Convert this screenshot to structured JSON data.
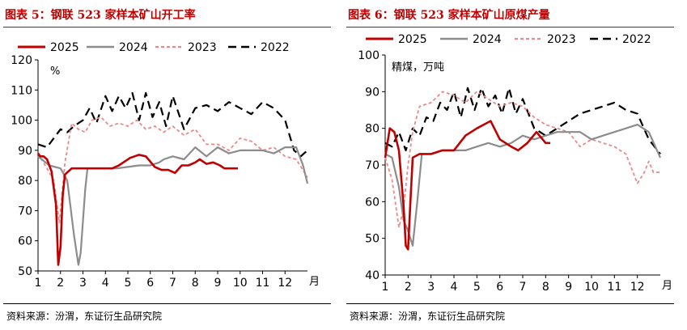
{
  "colors": {
    "s2025": "#c00000",
    "s2024": "#8c8c8c",
    "s2023": "#e98a8a",
    "s2022": "#000000",
    "title": "#c00000"
  },
  "chart_data": [
    {
      "type": "line",
      "title": "图表 5：钢联 523 家样本矿山开工率",
      "source": "资料来源：汾渭，东证衍生品研究院",
      "ylabel": "%",
      "xlabel": "",
      "x_unit": "月",
      "ylim": [
        50,
        120
      ],
      "yticks": [
        50,
        60,
        70,
        80,
        90,
        100,
        110,
        120
      ],
      "xlim": [
        1,
        13
      ],
      "xticks": [
        "1",
        "2",
        "3",
        "4",
        "5",
        "6",
        "7",
        "8",
        "9",
        "10",
        "11",
        "12"
      ],
      "legend": [
        "2025",
        "2024",
        "2023",
        "2022"
      ],
      "series": [
        {
          "name": "2025",
          "key": "s2025",
          "style": "solid-thick",
          "x": [
            1.0,
            1.1,
            1.25,
            1.4,
            1.6,
            1.8,
            1.9,
            2.0,
            2.1,
            2.2,
            2.5,
            3.0,
            3.5,
            4.0,
            4.3,
            4.6,
            4.9,
            5.1,
            5.3,
            5.5,
            5.8,
            6.2,
            6.5,
            6.8,
            7.1,
            7.4,
            7.7,
            8.0,
            8.2,
            8.5,
            8.8,
            9.1,
            9.3,
            9.5,
            9.9
          ],
          "values": [
            89,
            88,
            88,
            87,
            83,
            72,
            52,
            58,
            75,
            82,
            84,
            84,
            84,
            84,
            84,
            85,
            86.5,
            87.5,
            88,
            88.5,
            88,
            84.5,
            83.5,
            83.5,
            82.5,
            85,
            85,
            86,
            87,
            85.5,
            86,
            85,
            84,
            84,
            84
          ]
        },
        {
          "name": "2024",
          "key": "s2024",
          "style": "solid",
          "x": [
            1.0,
            1.5,
            2.0,
            2.3,
            2.6,
            2.8,
            2.9,
            3.1,
            3.2,
            3.5,
            4.0,
            4.5,
            5.0,
            5.5,
            6.0,
            6.4,
            6.6,
            7.0,
            7.5,
            8.0,
            8.5,
            9.0,
            9.5,
            10.0,
            10.5,
            11.0,
            11.5,
            12.0,
            12.5,
            12.8,
            13.0
          ],
          "values": [
            88,
            85,
            84,
            80,
            62,
            52,
            56,
            77,
            84,
            84,
            84,
            84,
            84.5,
            85,
            85,
            86,
            87,
            88,
            87,
            91,
            88,
            91,
            89,
            90,
            90,
            90,
            89,
            91,
            91,
            85,
            79
          ]
        },
        {
          "name": "2023",
          "key": "s2023",
          "style": "dashed",
          "x": [
            1.0,
            1.4,
            1.7,
            1.95,
            2.2,
            2.5,
            2.8,
            3.1,
            3.4,
            3.8,
            4.2,
            4.6,
            5.0,
            5.4,
            5.8,
            6.2,
            6.6,
            7.0,
            7.5,
            8.0,
            8.5,
            9.0,
            9.5,
            10.0,
            10.5,
            11.0,
            11.5,
            12.0,
            12.5,
            13.0
          ],
          "values": [
            89,
            84,
            80,
            66,
            86,
            99,
            97,
            96,
            100,
            101,
            98,
            99,
            98,
            100,
            97,
            98,
            96,
            98,
            95,
            97,
            92,
            92,
            90,
            94,
            93,
            90,
            91,
            88,
            87,
            81
          ]
        },
        {
          "name": "2022",
          "key": "s2022",
          "style": "long-dash",
          "x": [
            1.0,
            1.4,
            1.8,
            2.0,
            2.3,
            2.6,
            3.0,
            3.3,
            3.6,
            4.0,
            4.3,
            4.6,
            4.9,
            5.2,
            5.5,
            5.8,
            6.1,
            6.4,
            6.7,
            7.0,
            7.5,
            8.0,
            8.5,
            9.0,
            9.5,
            10.0,
            10.5,
            11.0,
            11.5,
            12.0,
            12.4,
            12.7,
            13.0
          ],
          "values": [
            92,
            91,
            95,
            97,
            96,
            98,
            100,
            104,
            99,
            108,
            103,
            108,
            104,
            109,
            100,
            109,
            101,
            106,
            98,
            108,
            97,
            104,
            105,
            103,
            106,
            104,
            102,
            106,
            104,
            100,
            90,
            88,
            90
          ]
        }
      ]
    },
    {
      "type": "line",
      "title": "图表 6：钢联 523 家样本矿山原煤产量",
      "source": "资料来源：汾渭，东证衍生品研究院",
      "ylabel": "精煤，万吨",
      "xlabel": "",
      "x_unit": "月",
      "ylim": [
        40,
        100
      ],
      "yticks": [
        40,
        50,
        60,
        70,
        80,
        90,
        100
      ],
      "xlim": [
        1,
        13
      ],
      "xticks": [
        "1",
        "2",
        "3",
        "4",
        "5",
        "6",
        "7",
        "8",
        "9",
        "10",
        "11",
        "12"
      ],
      "legend": [
        "2025",
        "2024",
        "2023",
        "2022"
      ],
      "series": [
        {
          "name": "2025",
          "key": "s2025",
          "style": "solid-thick",
          "x": [
            1.0,
            1.2,
            1.4,
            1.6,
            1.8,
            1.9,
            2.0,
            2.1,
            2.2,
            2.5,
            3.0,
            3.5,
            4.0,
            4.5,
            5.0,
            5.3,
            5.6,
            6.0,
            6.5,
            6.8,
            7.2,
            7.6,
            8.0,
            8.2
          ],
          "values": [
            72,
            80,
            79,
            74,
            59,
            48,
            47,
            60,
            72,
            73,
            73,
            74,
            74,
            78,
            80,
            81,
            82,
            77,
            75,
            74,
            76,
            79,
            76,
            76
          ]
        },
        {
          "name": "2024",
          "key": "s2024",
          "style": "solid",
          "x": [
            1.0,
            1.3,
            1.6,
            1.8,
            2.0,
            2.2,
            2.4,
            2.6,
            3.0,
            3.5,
            4.0,
            4.5,
            5.0,
            5.5,
            6.0,
            6.5,
            7.0,
            7.5,
            8.0,
            8.5,
            9.0,
            9.5,
            10.0,
            10.5,
            11.0,
            11.5,
            12.0,
            12.5,
            13.0
          ],
          "values": [
            73,
            72,
            64,
            55,
            52,
            48,
            60,
            73,
            73,
            74,
            74,
            74,
            75,
            76,
            75,
            76,
            78,
            77,
            78,
            79,
            79,
            79,
            77,
            78,
            79,
            80,
            81,
            79,
            72
          ]
        },
        {
          "name": "2023",
          "key": "s2023",
          "style": "dashed",
          "x": [
            1.0,
            1.3,
            1.6,
            1.8,
            2.0,
            2.2,
            2.5,
            3.0,
            3.5,
            4.0,
            4.5,
            5.0,
            5.5,
            6.0,
            6.5,
            7.0,
            7.5,
            8.0,
            8.5,
            9.0,
            9.5,
            10.0,
            10.5,
            11.0,
            11.5,
            12.0,
            12.3,
            12.5,
            12.7,
            13.0
          ],
          "values": [
            72,
            66,
            53,
            58,
            70,
            79,
            86,
            87,
            90,
            89,
            87,
            90,
            88,
            86,
            87,
            86,
            83,
            81,
            80,
            79,
            75,
            77,
            76,
            75,
            73,
            65,
            68,
            71,
            68,
            68
          ]
        },
        {
          "name": "2022",
          "key": "s2022",
          "style": "long-dash",
          "x": [
            1.0,
            1.3,
            1.6,
            1.9,
            2.2,
            2.5,
            2.8,
            3.1,
            3.4,
            3.7,
            4.0,
            4.3,
            4.6,
            4.9,
            5.2,
            5.5,
            5.8,
            6.1,
            6.4,
            6.7,
            7.0,
            7.5,
            8.0,
            8.5,
            9.0,
            9.5,
            10.0,
            10.5,
            11.0,
            11.5,
            12.0,
            12.5,
            13.0
          ],
          "values": [
            76,
            75,
            79,
            74,
            80,
            78,
            83,
            82,
            87,
            85,
            90,
            83,
            91,
            85,
            91,
            86,
            89,
            84,
            91,
            84,
            88,
            80,
            78,
            80,
            82,
            84,
            85,
            86,
            87,
            85,
            84,
            77,
            73
          ]
        }
      ]
    }
  ]
}
